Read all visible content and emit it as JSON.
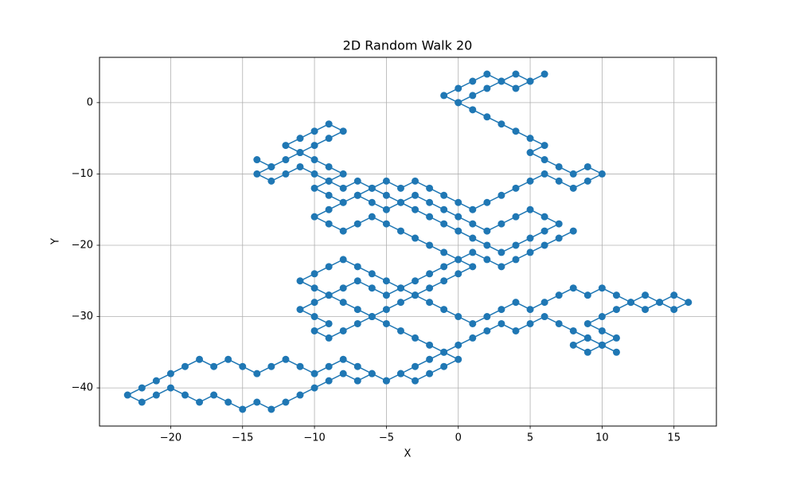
{
  "chart_data": {
    "type": "line",
    "title": "2D Random Walk 20",
    "x_label": "X",
    "y_label": "Y",
    "color": "#1f77b4",
    "markers": true,
    "grid": true,
    "xlim": [
      -24.95,
      17.95
    ],
    "ylim": [
      -45.35,
      6.35
    ],
    "xticks": [
      {
        "value": -20,
        "label": "−20"
      },
      {
        "value": -15,
        "label": "−15"
      },
      {
        "value": -10,
        "label": "−10"
      },
      {
        "value": -5,
        "label": "−5"
      },
      0,
      5,
      10,
      15
    ],
    "yticks": [
      {
        "value": -40,
        "label": "−40"
      },
      {
        "value": -30,
        "label": "−30"
      },
      {
        "value": -20,
        "label": "−20"
      },
      {
        "value": -10,
        "label": "−10"
      },
      0
    ],
    "x": [
      0,
      1,
      2,
      3,
      4,
      5,
      6,
      5,
      4,
      3,
      2,
      1,
      0,
      -1,
      0,
      1,
      2,
      3,
      4,
      5,
      6,
      5,
      6,
      7,
      8,
      9,
      10,
      9,
      8,
      7,
      6,
      5,
      4,
      3,
      2,
      1,
      0,
      -1,
      -2,
      -3,
      -4,
      -5,
      -6,
      -7,
      -8,
      -9,
      -8,
      -9,
      -10,
      -11,
      -10,
      -9,
      -8,
      -9,
      -10,
      -11,
      -12,
      -11,
      -12,
      -13,
      -14,
      -13,
      -14,
      -13,
      -12,
      -11,
      -10,
      -9,
      -10,
      -9,
      -8,
      -7,
      -6,
      -5,
      -4,
      -3,
      -2,
      -1,
      0,
      1,
      2,
      3,
      4,
      5,
      6,
      7,
      6,
      5,
      4,
      3,
      2,
      1,
      0,
      -1,
      -2,
      -3,
      -4,
      -5,
      -6,
      -7,
      -8,
      -9,
      -10,
      -9,
      -8,
      -7,
      -6,
      -5,
      -4,
      -3,
      -2,
      -1,
      0,
      1,
      0,
      -1,
      -2,
      -3,
      -4,
      -5,
      -6,
      -7,
      -8,
      -9,
      -10,
      -9,
      -10,
      -11,
      -10,
      -9,
      -10,
      -11,
      -10,
      -9,
      -8,
      -7,
      -6,
      -5,
      -4,
      -3,
      -2,
      -1,
      0,
      1,
      2,
      3,
      4,
      5,
      6,
      7,
      8,
      9,
      10,
      11,
      12,
      13,
      14,
      15,
      16,
      15,
      14,
      13,
      12,
      11,
      10,
      9,
      10,
      11,
      10,
      9,
      8,
      9,
      10,
      11,
      10,
      9,
      8,
      7,
      6,
      5,
      4,
      3,
      2,
      1,
      0,
      -1,
      -2,
      -3,
      -4,
      -5,
      -6,
      -7,
      -8,
      -9,
      -10,
      -11,
      -12,
      -13,
      -14,
      -15,
      -16,
      -17,
      -18,
      -19,
      -20,
      -21,
      -22,
      -23,
      -22,
      -21,
      -20,
      -19,
      -18,
      -17,
      -16,
      -15,
      -14,
      -13,
      -12,
      -11,
      -10,
      -9,
      -8,
      -7,
      -6,
      -5,
      -4,
      -3,
      -2,
      -1,
      0,
      -1,
      -2,
      -3,
      -4,
      -5,
      -6,
      -7,
      -8,
      -9,
      -8,
      -7,
      -6,
      -5,
      -4,
      -3,
      -2,
      -1,
      0,
      1,
      2,
      3,
      4,
      5,
      6,
      7,
      8
    ],
    "values": [
      0,
      1,
      2,
      3,
      4,
      3,
      4,
      3,
      2,
      3,
      4,
      3,
      2,
      1,
      0,
      -1,
      -2,
      -3,
      -4,
      -5,
      -6,
      -7,
      -8,
      -9,
      -10,
      -9,
      -10,
      -11,
      -12,
      -11,
      -10,
      -11,
      -12,
      -13,
      -14,
      -15,
      -14,
      -13,
      -12,
      -11,
      -12,
      -11,
      -12,
      -11,
      -12,
      -11,
      -10,
      -9,
      -8,
      -7,
      -6,
      -5,
      -4,
      -3,
      -4,
      -5,
      -6,
      -7,
      -8,
      -9,
      -8,
      -9,
      -10,
      -11,
      -10,
      -9,
      -10,
      -11,
      -12,
      -13,
      -14,
      -13,
      -14,
      -15,
      -14,
      -15,
      -16,
      -17,
      -18,
      -19,
      -20,
      -21,
      -20,
      -19,
      -18,
      -17,
      -16,
      -15,
      -16,
      -17,
      -18,
      -17,
      -16,
      -15,
      -14,
      -13,
      -14,
      -13,
      -12,
      -13,
      -14,
      -15,
      -16,
      -17,
      -18,
      -17,
      -16,
      -17,
      -18,
      -19,
      -20,
      -21,
      -22,
      -23,
      -24,
      -25,
      -26,
      -27,
      -28,
      -29,
      -30,
      -31,
      -32,
      -33,
      -32,
      -31,
      -30,
      -29,
      -28,
      -27,
      -26,
      -25,
      -24,
      -23,
      -22,
      -23,
      -24,
      -25,
      -26,
      -27,
      -28,
      -29,
      -30,
      -31,
      -30,
      -29,
      -28,
      -29,
      -28,
      -27,
      -26,
      -27,
      -26,
      -27,
      -28,
      -27,
      -28,
      -27,
      -28,
      -29,
      -28,
      -29,
      -28,
      -29,
      -30,
      -31,
      -32,
      -33,
      -34,
      -35,
      -34,
      -33,
      -34,
      -35,
      -34,
      -33,
      -32,
      -31,
      -30,
      -31,
      -32,
      -31,
      -32,
      -33,
      -34,
      -35,
      -36,
      -37,
      -38,
      -39,
      -38,
      -37,
      -36,
      -37,
      -38,
      -37,
      -36,
      -37,
      -38,
      -37,
      -36,
      -37,
      -36,
      -37,
      -38,
      -39,
      -40,
      -41,
      -42,
      -41,
      -40,
      -41,
      -42,
      -41,
      -42,
      -43,
      -42,
      -43,
      -42,
      -41,
      -40,
      -39,
      -38,
      -39,
      -38,
      -39,
      -38,
      -39,
      -38,
      -37,
      -36,
      -35,
      -34,
      -33,
      -32,
      -31,
      -30,
      -29,
      -28,
      -27,
      -26,
      -25,
      -26,
      -27,
      -26,
      -25,
      -24,
      -23,
      -22,
      -21,
      -22,
      -23,
      -22,
      -21,
      -20,
      -19,
      -18
    ]
  }
}
